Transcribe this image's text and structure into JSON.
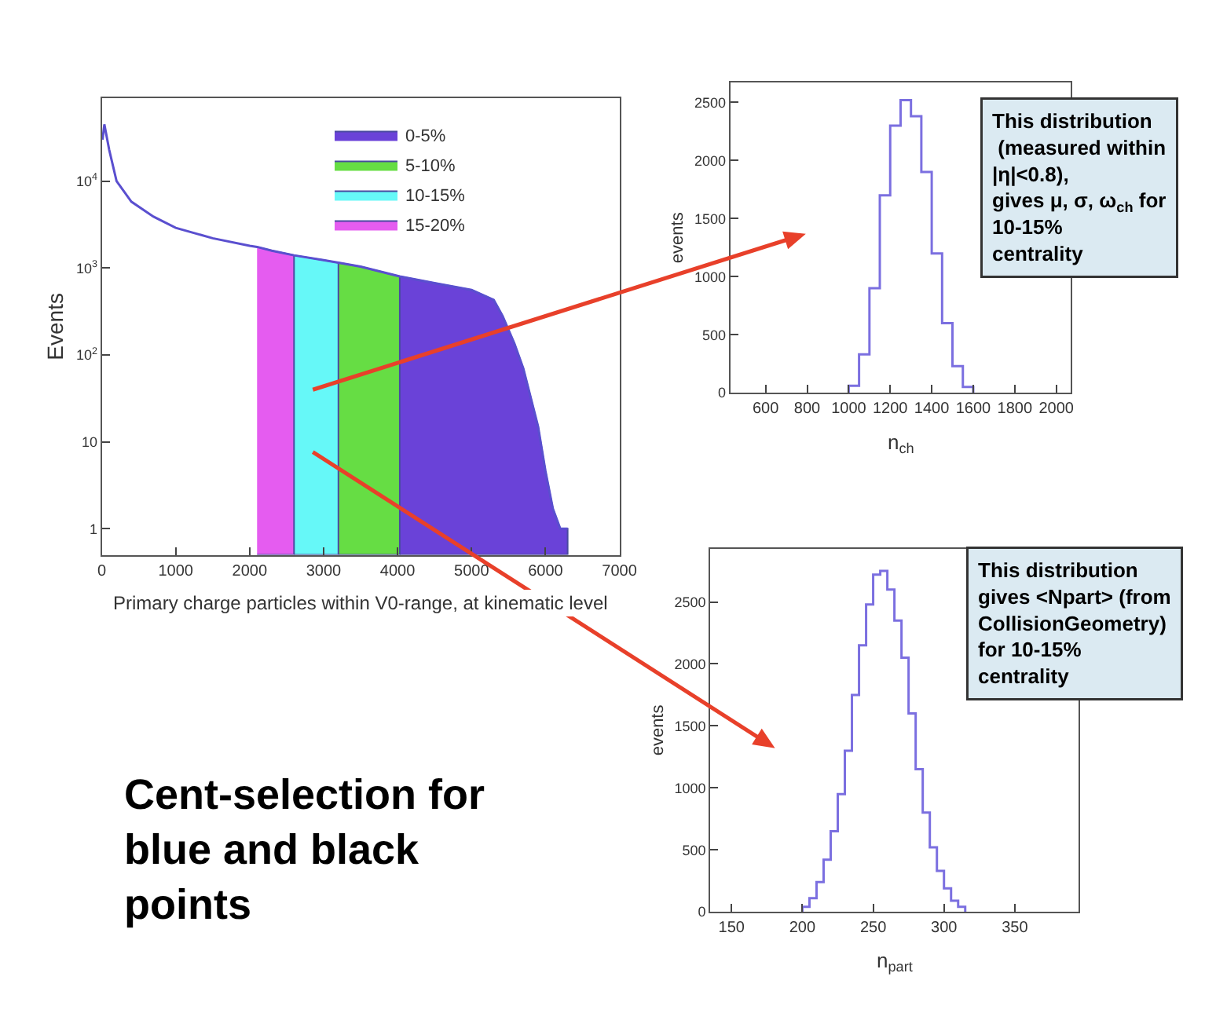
{
  "chart_data": [
    {
      "type": "line",
      "xlabel": "Primary charge particles within V0-range, at kinematic level",
      "ylabel": "Events",
      "log": "y",
      "legend": "top right",
      "marker": "none",
      "xlim": [
        0,
        7000
      ],
      "xticks": [
        0,
        1000,
        2000,
        3000,
        4000,
        5000,
        6000,
        7000
      ],
      "ylim": [
        0.5,
        90000
      ],
      "yticks": [
        1,
        10,
        {
          "value": 100,
          "label": "10$^{2}$"
        },
        {
          "value": 1000,
          "label": "10$^{3}$"
        },
        {
          "value": 10000,
          "label": "10$^{4}$"
        }
      ],
      "series": [
        {
          "color": "#5a4fcf",
          "x": [
            10,
            35,
            100,
            200,
            400,
            700,
            1000,
            1500,
            2000,
            2100,
            2300,
            2600,
            3000,
            3200,
            3500,
            4030,
            4500,
            5000,
            5300,
            5420,
            5580,
            5700,
            5900,
            6000,
            6100,
            6200,
            6300
          ],
          "values": [
            30000,
            45000,
            23000,
            10000,
            5800,
            3900,
            2900,
            2200,
            1800,
            1750,
            1580,
            1400,
            1230,
            1150,
            1040,
            800,
            670,
            560,
            430,
            280,
            135,
            70,
            15,
            4.6,
            1.7,
            1,
            1
          ]
        },
        {
          "type": "area",
          "name": "0-5%",
          "color": "#6a42d8",
          "x": [
            4030,
            4500,
            5000,
            5300,
            5420,
            5580,
            5700,
            5900,
            6000,
            6100,
            6200,
            6300
          ],
          "values": [
            800,
            670,
            560,
            430,
            280,
            135,
            70,
            15,
            4.6,
            1.7,
            1,
            1
          ]
        },
        {
          "type": "area",
          "name": "5-10%",
          "color": "#66dd44",
          "x": [
            3200,
            3500,
            4030
          ],
          "values": [
            1150,
            1040,
            800
          ]
        },
        {
          "type": "area",
          "name": "10-15%",
          "color": "#66f8f8",
          "x": [
            2600,
            3000,
            3200
          ],
          "values": [
            1400,
            1230,
            1150
          ]
        },
        {
          "type": "area",
          "name": "15-20%",
          "color": "#e55cf0",
          "x": [
            2100,
            2300,
            2600
          ],
          "values": [
            1750,
            1580,
            1400
          ]
        }
      ],
      "annotations": [
        "Cent-selection for\nblue and black\npoints"
      ]
    },
    {
      "type": "histogram",
      "xlabel": "n$_{ch}$",
      "ylabel": "events",
      "color": "#7b6fe0",
      "xlim": [
        430,
        2070
      ],
      "xticks": [
        600,
        800,
        1000,
        1200,
        1400,
        1600,
        1800,
        2000
      ],
      "ylim": [
        0,
        2670
      ],
      "yticks": [
        0,
        500,
        1000,
        1500,
        2000,
        2500
      ],
      "bins": [
        1000,
        1050,
        1100,
        1150,
        1200,
        1250,
        1300,
        1350,
        1400,
        1450,
        1500,
        1550,
        1600
      ],
      "values": [
        60,
        330,
        900,
        1700,
        2300,
        2520,
        2380,
        1900,
        1200,
        600,
        230,
        50
      ],
      "annotations": [
        "This distribution\n (measured within\n|η|<0.8),\ngives μ, σ, ω$_{ch}$ for\n10-15%\ncentrality"
      ]
    },
    {
      "type": "histogram",
      "xlabel": "n$_{part}$",
      "ylabel": "events",
      "color": "#7b6fe0",
      "xlim": [
        135,
        395
      ],
      "xticks": [
        150,
        200,
        250,
        300,
        350
      ],
      "ylim": [
        0,
        2930
      ],
      "yticks": [
        0,
        500,
        1000,
        1500,
        2000,
        2500
      ],
      "bins": [
        200,
        205,
        210,
        215,
        220,
        225,
        230,
        235,
        240,
        245,
        250,
        255,
        260,
        265,
        270,
        275,
        280,
        285,
        290,
        295,
        300,
        305,
        310,
        315
      ],
      "values": [
        40,
        110,
        240,
        420,
        650,
        950,
        1300,
        1750,
        2150,
        2480,
        2720,
        2750,
        2600,
        2350,
        2050,
        1600,
        1150,
        800,
        520,
        330,
        190,
        90,
        40
      ],
      "annotations": [
        "This distribution\ngives <Npart> (from\nCollisionGeometry)\nfor 10-15%\ncentrality"
      ]
    }
  ]
}
